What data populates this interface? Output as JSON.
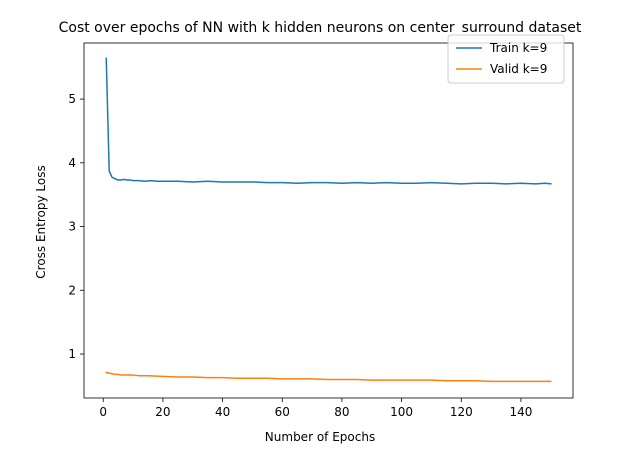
{
  "chart_data": {
    "type": "line",
    "title": "Cost over epochs of NN with k hidden neurons on center_surround dataset",
    "xlabel": "Number of Epochs",
    "ylabel": "Cross Entropy Loss",
    "xlim": [
      -6.45,
      157.45
    ],
    "ylim": [
      0.31,
      5.88
    ],
    "xticks": [
      0,
      20,
      40,
      60,
      80,
      100,
      120,
      140
    ],
    "yticks": [
      1,
      2,
      3,
      4,
      5
    ],
    "grid": false,
    "legend_position": "top-right",
    "series": [
      {
        "name": "Train k=9",
        "color": "#1f77b4",
        "x": [
          1,
          2,
          3,
          4,
          5,
          6,
          7,
          8,
          9,
          10,
          12,
          14,
          16,
          18,
          20,
          25,
          30,
          35,
          40,
          45,
          50,
          55,
          60,
          65,
          70,
          75,
          80,
          85,
          90,
          95,
          100,
          105,
          110,
          115,
          120,
          125,
          130,
          135,
          140,
          145,
          148,
          150
        ],
        "y": [
          5.64,
          3.87,
          3.77,
          3.75,
          3.73,
          3.73,
          3.74,
          3.73,
          3.73,
          3.72,
          3.72,
          3.71,
          3.72,
          3.71,
          3.71,
          3.71,
          3.7,
          3.71,
          3.7,
          3.7,
          3.7,
          3.69,
          3.69,
          3.68,
          3.69,
          3.69,
          3.68,
          3.69,
          3.68,
          3.69,
          3.68,
          3.68,
          3.69,
          3.68,
          3.67,
          3.68,
          3.68,
          3.67,
          3.68,
          3.67,
          3.68,
          3.67
        ]
      },
      {
        "name": "Valid k=9",
        "color": "#ff7f0e",
        "x": [
          1,
          2,
          3,
          4,
          5,
          6,
          8,
          10,
          12,
          15,
          20,
          25,
          30,
          35,
          40,
          45,
          50,
          55,
          60,
          65,
          70,
          75,
          80,
          85,
          90,
          95,
          100,
          105,
          110,
          115,
          120,
          125,
          130,
          135,
          140,
          145,
          148,
          150
        ],
        "y": [
          0.71,
          0.7,
          0.69,
          0.68,
          0.68,
          0.67,
          0.67,
          0.67,
          0.66,
          0.66,
          0.65,
          0.64,
          0.64,
          0.63,
          0.63,
          0.62,
          0.62,
          0.62,
          0.61,
          0.61,
          0.61,
          0.6,
          0.6,
          0.6,
          0.59,
          0.59,
          0.59,
          0.59,
          0.59,
          0.58,
          0.58,
          0.58,
          0.57,
          0.57,
          0.57,
          0.57,
          0.57,
          0.57
        ]
      }
    ]
  }
}
